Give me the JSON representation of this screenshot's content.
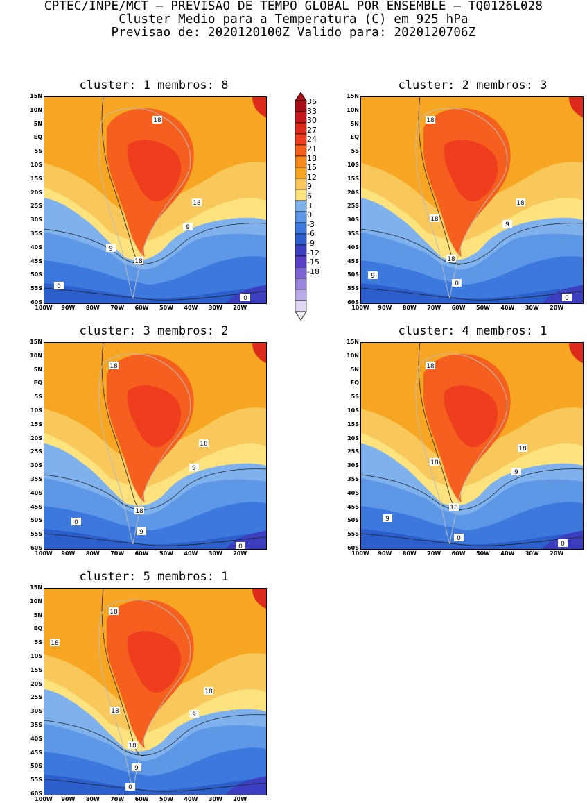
{
  "header": {
    "line1": "CPTEC/INPE/MCT – PREVISAO DE TEMPO GLOBAL POR ENSEMBLE – TQ0126L028",
    "line2": "Cluster Medio para a Temperatura (C) em 925 hPa",
    "line3": "Previsao de: 2020120100Z   Valido para: 2020120706Z"
  },
  "panels": [
    {
      "title": "cluster: 1   membros: 8",
      "labels": [
        "18",
        "18",
        "9",
        "9",
        "18",
        "0",
        "0"
      ]
    },
    {
      "title": "cluster: 2   membros: 3",
      "labels": [
        "18",
        "18",
        "9",
        "18",
        "18",
        "9",
        "0",
        "0"
      ]
    },
    {
      "title": "cluster: 3   membros: 2",
      "labels": [
        "18",
        "18",
        "9",
        "18",
        "9",
        "0",
        "0"
      ]
    },
    {
      "title": "cluster: 4   membros: 1",
      "labels": [
        "18",
        "18",
        "9",
        "18",
        "18",
        "9",
        "0",
        "0"
      ]
    },
    {
      "title": "cluster: 5   membros: 1",
      "labels": [
        "18",
        "18",
        "18",
        "9",
        "18",
        "18",
        "9",
        "0"
      ]
    }
  ],
  "y_ticks": [
    "15N",
    "10N",
    "5N",
    "EQ",
    "5S",
    "10S",
    "15S",
    "20S",
    "25S",
    "30S",
    "35S",
    "40S",
    "45S",
    "50S",
    "55S",
    "60S"
  ],
  "x_ticks": [
    "100W",
    "90W",
    "80W",
    "70W",
    "60W",
    "50W",
    "40W",
    "30W",
    "20W"
  ],
  "colorbar": {
    "labels": [
      "36",
      "33",
      "30",
      "27",
      "24",
      "21",
      "18",
      "15",
      "12",
      "9",
      "6",
      "3",
      "0",
      "-3",
      "-6",
      "-9",
      "-12",
      "-15",
      "-18"
    ],
    "colors": [
      "#a50f15",
      "#c4161c",
      "#dc2a1c",
      "#ee3d1f",
      "#f5601f",
      "#f78a1f",
      "#f7a623",
      "#f8c85c",
      "#fde27e",
      "#7fb2ec",
      "#5d97e6",
      "#3d78dc",
      "#2c5fcb",
      "#3b3fbf",
      "#5a40c4",
      "#7d63d2",
      "#9c86dd",
      "#bdacea",
      "#e0d8f5"
    ]
  }
}
